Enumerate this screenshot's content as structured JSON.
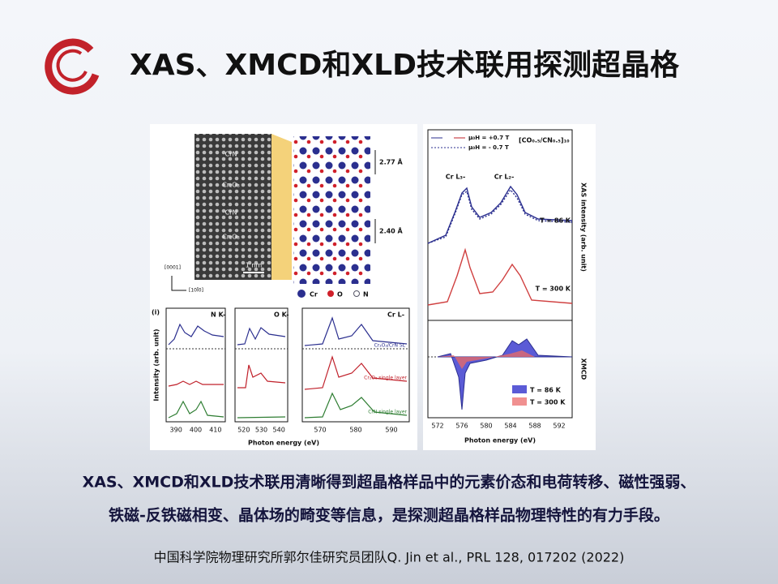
{
  "header": {
    "title": "XAS、XMCD和XLD技术联用探测超晶格"
  },
  "figure_left": {
    "tem_labels": [
      "CrN",
      "Cr₂O₃",
      "CrN",
      "Cr₂O₃"
    ],
    "scale_bar": "1 nm",
    "axis_labels": [
      "[0001]",
      "[10Ī0]"
    ],
    "spacings": [
      "2.77 Å",
      "2.40 Å"
    ],
    "legend": [
      "Cr",
      "O",
      "N"
    ],
    "panel_label": "(i)",
    "panels": [
      {
        "title": "N K-",
        "ticks": [
          "390",
          "400",
          "410"
        ]
      },
      {
        "title": "O K-",
        "ticks": [
          "520",
          "530",
          "540"
        ]
      },
      {
        "title": "Cr L-",
        "ticks": [
          "570",
          "580",
          "590"
        ]
      }
    ],
    "y_label": "Intensity (arb. unit)",
    "x_label": "Photon energy (eV)",
    "curve_labels": [
      "Cr₂O₃/CrN SL",
      "Cr₂O₃ single layer",
      "CrN single layer"
    ]
  },
  "figure_right": {
    "legend": [
      "μ₀H = +0.7 T",
      "μ₀H = - 0.7 T"
    ],
    "sample": "[CO₀.₅/CN₀.₅]₁₀",
    "peaks": [
      "Cr L₃-",
      "Cr L₂-"
    ],
    "temps": [
      "T = 86 K",
      "T = 300 K"
    ],
    "y_label_top": "XAS intensity (arb. unit)",
    "y_label_bottom": "XMCD",
    "xmcd_legend": [
      "T = 86 K",
      "T = 300 K"
    ],
    "ticks": [
      "572",
      "576",
      "580",
      "584",
      "588",
      "592"
    ],
    "x_label": "Photon energy (eV)"
  },
  "body": {
    "lines": [
      "XAS、XMCD和XLD技术联用清晰得到超晶格样品中的元素价态和电荷转移、磁性强弱、",
      "铁磁-反铁磁相变、晶体场的畸变等信息，是探测超晶格样品物理特性的有力手段。"
    ]
  },
  "citation": "中国科学院物理研究所郭尔佳研究员团队Q. Jin et al., PRL 128, 017202 (2022)"
}
